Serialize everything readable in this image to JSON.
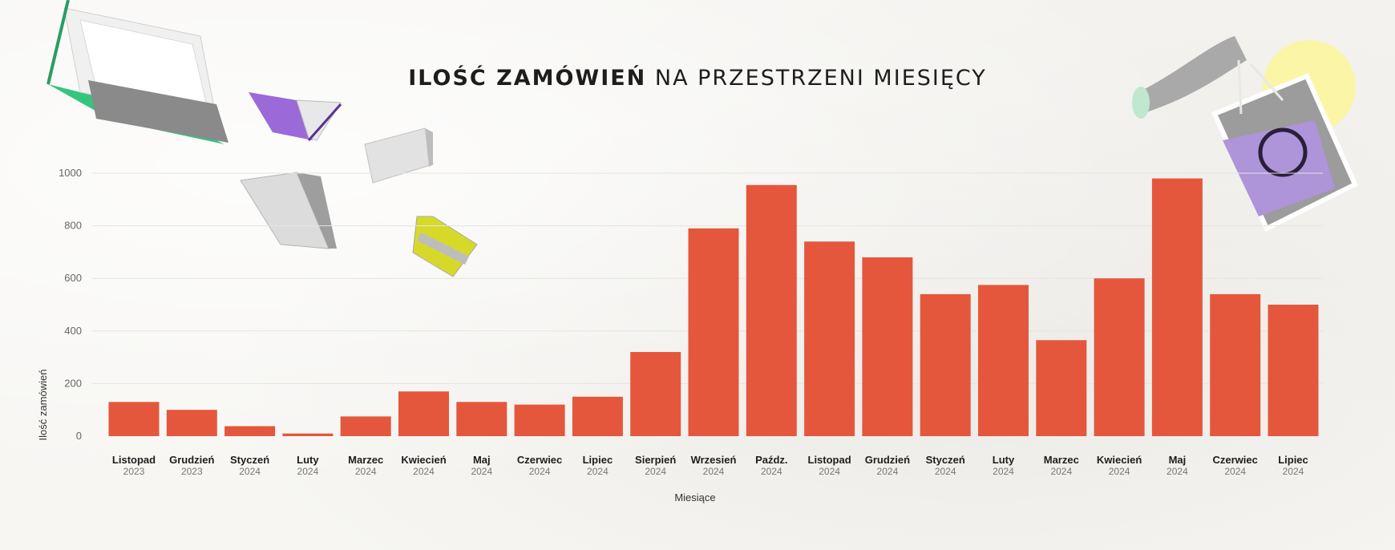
{
  "title": {
    "bold": "ILOŚĆ ZAMÓWIEŃ",
    "light": "NA PRZESTRZENI MIESIĘCY"
  },
  "colors": {
    "bar": "#e4573c",
    "grid": "#e6e4e0",
    "tick": "#666666",
    "month": "#1d1d1d",
    "year": "#777777"
  },
  "chart_data": {
    "type": "bar",
    "title": "ILOŚĆ ZAMÓWIEŃ NA PRZESTRZENI MIESIĘCY",
    "xlabel": "Miesiące",
    "ylabel": "Ilość zamówień",
    "ylim": [
      0,
      1000
    ],
    "yticks": [
      0,
      200,
      400,
      600,
      800,
      1000
    ],
    "grid": true,
    "categories": [
      {
        "month": "Listopad",
        "year": "2023"
      },
      {
        "month": "Grudzień",
        "year": "2023"
      },
      {
        "month": "Styczeń",
        "year": "2024"
      },
      {
        "month": "Luty",
        "year": "2024"
      },
      {
        "month": "Marzec",
        "year": "2024"
      },
      {
        "month": "Kwiecień",
        "year": "2024"
      },
      {
        "month": "Maj",
        "year": "2024"
      },
      {
        "month": "Czerwiec",
        "year": "2024"
      },
      {
        "month": "Lipiec",
        "year": "2024"
      },
      {
        "month": "Sierpień",
        "year": "2024"
      },
      {
        "month": "Wrzesień",
        "year": "2024"
      },
      {
        "month": "Paźdz.",
        "year": "2024"
      },
      {
        "month": "Listopad",
        "year": "2024"
      },
      {
        "month": "Grudzień",
        "year": "2024"
      },
      {
        "month": "Styczeń",
        "year": "2024"
      },
      {
        "month": "Luty",
        "year": "2024"
      },
      {
        "month": "Marzec",
        "year": "2024"
      },
      {
        "month": "Kwiecień",
        "year": "2024"
      },
      {
        "month": "Maj",
        "year": "2024"
      },
      {
        "month": "Czerwiec",
        "year": "2024"
      },
      {
        "month": "Lipiec",
        "year": "2024"
      }
    ],
    "values": [
      130,
      100,
      38,
      10,
      75,
      170,
      130,
      120,
      150,
      320,
      790,
      955,
      740,
      680,
      540,
      575,
      365,
      600,
      980,
      540,
      500
    ]
  },
  "decorations": {
    "books_icon": "flying-books-icon",
    "bag_icon": "hand-with-shopping-bag-icon"
  }
}
